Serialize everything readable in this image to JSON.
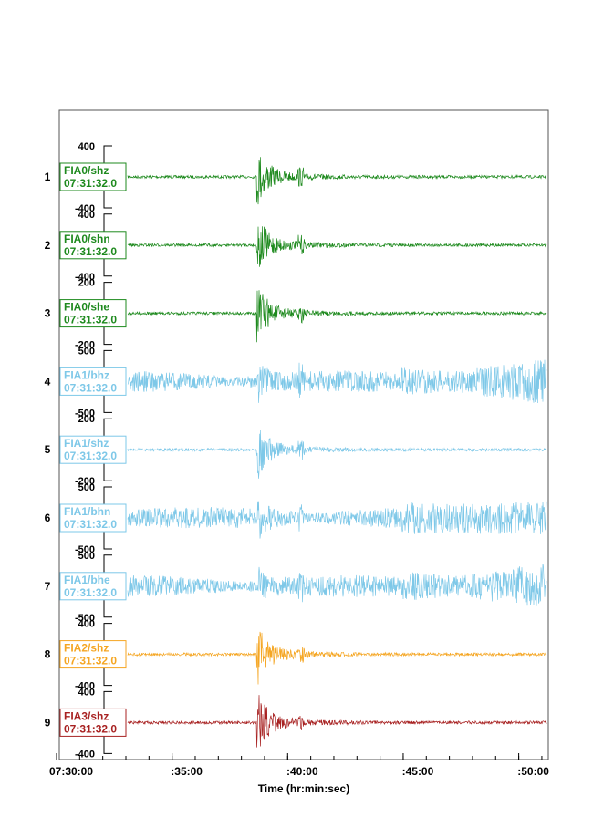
{
  "chart_data": {
    "type": "line",
    "xlabel": "Time (hr:min:sec)",
    "x_tick_labels": [
      "07:30:00",
      ":35:00",
      ":40:00",
      ":45:00",
      ":50:00"
    ],
    "x_ticks_minutes": [
      0,
      5,
      10,
      15,
      20
    ],
    "xlim_minutes": [
      0,
      21.2
    ],
    "event_onset_minutes": 8.7,
    "grid": false,
    "traces": [
      {
        "index": "1",
        "name": "FIA0/shz",
        "start": "07:31:32.0",
        "color": "#1e8a1e",
        "ylim": [
          -400,
          400
        ],
        "y_labels": [
          "400",
          "-400"
        ],
        "style": "event"
      },
      {
        "index": "2",
        "name": "FIA0/shn",
        "start": "07:31:32.0",
        "color": "#1e8a1e",
        "ylim": [
          -400,
          400
        ],
        "y_labels": [
          "400",
          "-400"
        ],
        "style": "event"
      },
      {
        "index": "3",
        "name": "FIA0/she",
        "start": "07:31:32.0",
        "color": "#1e8a1e",
        "ylim": [
          -200,
          200
        ],
        "y_labels": [
          "200",
          "-200"
        ],
        "style": "event"
      },
      {
        "index": "4",
        "name": "FIA1/bhz",
        "start": "07:31:32.0",
        "color": "#7ec8e8",
        "ylim": [
          -500,
          500
        ],
        "y_labels": [
          "500",
          "-500"
        ],
        "style": "noisy"
      },
      {
        "index": "5",
        "name": "FIA1/shz",
        "start": "07:31:32.0",
        "color": "#7ec8e8",
        "ylim": [
          -200,
          200
        ],
        "y_labels": [
          "200",
          "-200"
        ],
        "style": "event"
      },
      {
        "index": "6",
        "name": "FIA1/bhn",
        "start": "07:31:32.0",
        "color": "#7ec8e8",
        "ylim": [
          -500,
          500
        ],
        "y_labels": [
          "500",
          "-500"
        ],
        "style": "noisy"
      },
      {
        "index": "7",
        "name": "FIA1/bhe",
        "start": "07:31:32.0",
        "color": "#7ec8e8",
        "ylim": [
          -500,
          500
        ],
        "y_labels": [
          "500",
          "-500"
        ],
        "style": "noisy"
      },
      {
        "index": "8",
        "name": "FIA2/shz",
        "start": "07:31:32.0",
        "color": "#f5a623",
        "ylim": [
          -400,
          400
        ],
        "y_labels": [
          "400",
          "-400"
        ],
        "style": "event"
      },
      {
        "index": "9",
        "name": "FIA3/shz",
        "start": "07:31:32.0",
        "color": "#a82222",
        "ylim": [
          -400,
          400
        ],
        "y_labels": [
          "400",
          "-400"
        ],
        "style": "event"
      }
    ]
  }
}
